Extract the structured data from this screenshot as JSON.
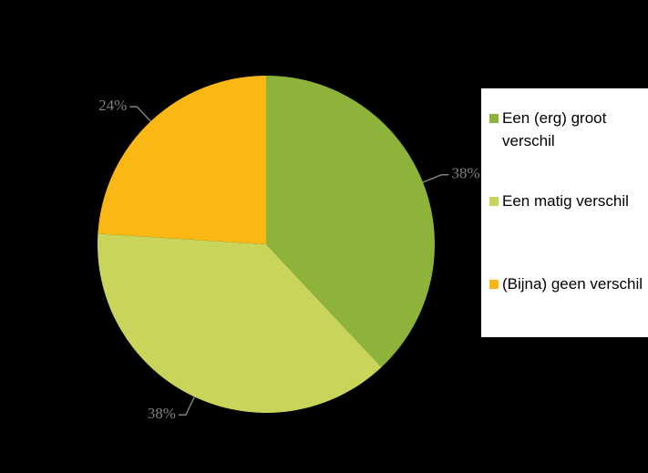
{
  "chart_data": {
    "type": "pie",
    "categories": [
      "Een (erg) groot verschil",
      "Een matig verschil",
      "(Bijna) geen verschil"
    ],
    "values": [
      38,
      38,
      24
    ],
    "value_labels": [
      "38%",
      "38%",
      "24%"
    ],
    "colors": [
      "#8db33a",
      "#c8d45a",
      "#fbb714"
    ],
    "legend": "right"
  }
}
